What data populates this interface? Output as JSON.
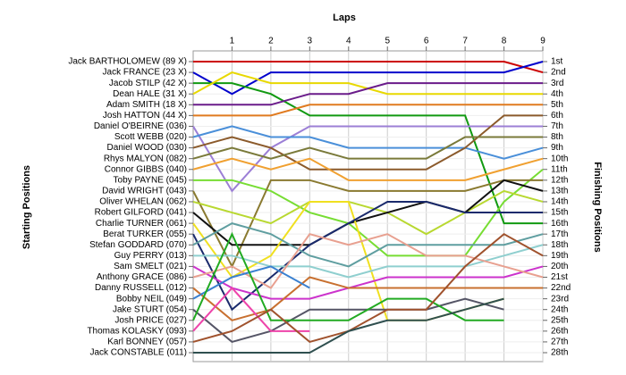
{
  "chart_data": {
    "type": "line",
    "title": "Laps",
    "y_label": "Starting Positions",
    "y2_label": "Finishing Positions",
    "x": [
      0,
      1,
      2,
      3,
      4,
      5,
      6,
      7,
      8,
      9
    ],
    "xlim": [
      0,
      9
    ],
    "xticks": [
      1,
      2,
      3,
      4,
      5,
      6,
      7,
      8,
      9
    ],
    "ylim": [
      28,
      1
    ],
    "grid": true,
    "y2ticks": [
      {
        "value": 1,
        "label": "1st"
      },
      {
        "value": 2,
        "label": "2nd"
      },
      {
        "value": 3,
        "label": "3rd"
      },
      {
        "value": 4,
        "label": "4th"
      },
      {
        "value": 5,
        "label": "5th"
      },
      {
        "value": 6,
        "label": "6th"
      },
      {
        "value": 7,
        "label": "7th"
      },
      {
        "value": 8,
        "label": "8th"
      },
      {
        "value": 9,
        "label": "9th"
      },
      {
        "value": 10,
        "label": "10th"
      },
      {
        "value": 11,
        "label": "11th"
      },
      {
        "value": 12,
        "label": "12th"
      },
      {
        "value": 13,
        "label": "13th"
      },
      {
        "value": 14,
        "label": "14th"
      },
      {
        "value": 15,
        "label": "15th"
      },
      {
        "value": 16,
        "label": "16th"
      },
      {
        "value": 17,
        "label": "17th"
      },
      {
        "value": 18,
        "label": "18th"
      },
      {
        "value": 19,
        "label": "19th"
      },
      {
        "value": 20,
        "label": "20th"
      },
      {
        "value": 21,
        "label": "21st"
      },
      {
        "value": 22,
        "label": "22nd"
      },
      {
        "value": 23,
        "label": "23rd"
      },
      {
        "value": 24,
        "label": "24th"
      },
      {
        "value": 25,
        "label": "25th"
      },
      {
        "value": 26,
        "label": "26th"
      },
      {
        "value": 27,
        "label": "27th"
      },
      {
        "value": 28,
        "label": "28th"
      }
    ],
    "series": [
      {
        "name": "Jack BARTHOLOMEW (89 X)",
        "color": "#cc0000",
        "values": [
          1,
          1,
          1,
          1,
          1,
          1,
          1,
          1,
          1,
          2
        ]
      },
      {
        "name": "Jack FRANCE (23 X)",
        "color": "#0000cc",
        "values": [
          2,
          4,
          2,
          2,
          2,
          2,
          2,
          2,
          2,
          1
        ]
      },
      {
        "name": "Jacob STILP (42 X)",
        "color": "#119911",
        "values": [
          3,
          3,
          4,
          6,
          6,
          6,
          6,
          6,
          16,
          16
        ]
      },
      {
        "name": "Dean HALE (31 X)",
        "color": "#e8d800",
        "values": [
          4,
          2,
          3,
          3,
          3,
          4,
          4,
          4,
          4,
          4
        ]
      },
      {
        "name": "Adam SMITH (18 X)",
        "color": "#6a1b8a",
        "values": [
          5,
          5,
          5,
          4,
          4,
          3,
          3,
          3,
          3,
          3
        ]
      },
      {
        "name": "Josh HATTON (44 X)",
        "color": "#e07a1f",
        "values": [
          6,
          6,
          6,
          5,
          5,
          5,
          5,
          5,
          5,
          5
        ]
      },
      {
        "name": "Daniel O'BEIRNE (036)",
        "color": "#9c7fd6",
        "values": [
          7,
          13,
          9,
          7,
          7,
          7,
          7,
          7,
          7,
          7
        ]
      },
      {
        "name": "Scott WEBB (020)",
        "color": "#4a8fd9",
        "values": [
          8,
          7,
          8,
          8,
          9,
          9,
          9,
          9,
          10,
          9
        ]
      },
      {
        "name": "Daniel WOOD (030)",
        "color": "#8b5a2b",
        "values": [
          9,
          8,
          9,
          11,
          11,
          11,
          11,
          9,
          6,
          6
        ]
      },
      {
        "name": "Rhys MALYON (082)",
        "color": "#7a7a3a",
        "values": [
          10,
          9,
          10,
          9,
          10,
          10,
          10,
          8,
          8,
          8
        ]
      },
      {
        "name": "Connor GIBBS (040)",
        "color": "#f0a030",
        "values": [
          11,
          10,
          11,
          10,
          12,
          12,
          12,
          12,
          11,
          10
        ]
      },
      {
        "name": "Toby PAYNE (045)",
        "color": "#77dd33",
        "values": [
          12,
          12,
          13,
          15,
          16,
          19,
          19,
          19,
          14,
          11
        ]
      },
      {
        "name": "David WRIGHT (043)",
        "color": "#8a7a30",
        "values": [
          13,
          20,
          12,
          12,
          13,
          13,
          13,
          13,
          12,
          12
        ]
      },
      {
        "name": "Oliver WHELAN (062)",
        "color": "#b8d830",
        "values": [
          14,
          15,
          16,
          14,
          14,
          15,
          17,
          15,
          13,
          14
        ]
      },
      {
        "name": "Robert GILFORD (041)",
        "color": "#111111",
        "values": [
          15,
          18,
          18,
          18,
          16,
          15,
          14,
          15,
          12,
          13
        ]
      },
      {
        "name": "Charlie TURNER (061)",
        "color": "#f0e020",
        "values": [
          16,
          21,
          19,
          14,
          14,
          25,
          25,
          24,
          23,
          null
        ]
      },
      {
        "name": "Berat TURKER (055)",
        "color": "#1a2a6c",
        "values": [
          17,
          24,
          21,
          18,
          16,
          14,
          14,
          15,
          15,
          15
        ]
      },
      {
        "name": "Stefan GODDARD (070)",
        "color": "#5f9ea0",
        "values": [
          18,
          16,
          17,
          19,
          20,
          18,
          18,
          18,
          18,
          17
        ]
      },
      {
        "name": "Guy PERRY (013)",
        "color": "#8fcfcf",
        "values": [
          19,
          19,
          20,
          20,
          21,
          20,
          20,
          20,
          19,
          18
        ]
      },
      {
        "name": "Sam SMELT (021)",
        "color": "#cc33cc",
        "values": [
          20,
          22,
          23,
          23,
          22,
          21,
          21,
          21,
          21,
          20
        ]
      },
      {
        "name": "Anthony GRACE (086)",
        "color": "#e8a090",
        "values": [
          21,
          20,
          22,
          17,
          18,
          17,
          19,
          19,
          20,
          21
        ]
      },
      {
        "name": "Danny RUSSELL (012)",
        "color": "#c87030",
        "values": [
          22,
          25,
          24,
          21,
          22,
          22,
          22,
          22,
          22,
          22
        ]
      },
      {
        "name": "Bobby NEIL (049)",
        "color": "#3a80d0",
        "values": [
          23,
          21,
          20,
          22,
          null,
          null,
          null,
          null,
          null,
          null
        ]
      },
      {
        "name": "Jake STURT (054)",
        "color": "#555566",
        "values": [
          24,
          27,
          26,
          24,
          24,
          24,
          24,
          23,
          24,
          null
        ]
      },
      {
        "name": "Josh PRICE (027)",
        "color": "#22aa22",
        "values": [
          25,
          17,
          25,
          25,
          25,
          23,
          23,
          25,
          25,
          null
        ]
      },
      {
        "name": "Thomas KOLASKY (093)",
        "color": "#ee44aa",
        "values": [
          26,
          22,
          26,
          26,
          null,
          null,
          null,
          null,
          null,
          null
        ]
      },
      {
        "name": "Karl BONNEY (057)",
        "color": "#a0522d",
        "values": [
          27,
          26,
          24,
          27,
          26,
          24,
          24,
          20,
          17,
          19
        ]
      },
      {
        "name": "Jack CONSTABLE (011)",
        "color": "#2f4f4f",
        "values": [
          28,
          28,
          28,
          28,
          26,
          25,
          25,
          24,
          23,
          null
        ]
      }
    ]
  }
}
